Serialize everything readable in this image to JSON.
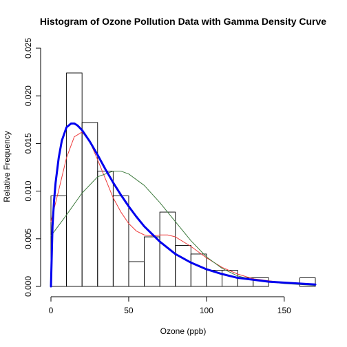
{
  "chart_data": {
    "type": "histogram",
    "title": "Histogram of Ozone Pollution Data with Gamma Density Curve",
    "xlabel": "Ozone (ppb)",
    "ylabel": "Relative Frequency",
    "xlim": [
      0,
      170
    ],
    "ylim": [
      0,
      0.025
    ],
    "x_ticks": [
      0,
      50,
      100,
      150
    ],
    "y_ticks": [
      0.0,
      0.005,
      0.01,
      0.015,
      0.02,
      0.025
    ],
    "y_tick_labels": [
      "0.000",
      "0.005",
      "0.010",
      "0.015",
      "0.020",
      "0.025"
    ],
    "grid": false,
    "legend": "none",
    "bin_width": 10,
    "bins": [
      {
        "start": 0,
        "end": 10,
        "density": 0.0095
      },
      {
        "start": 10,
        "end": 20,
        "density": 0.0224
      },
      {
        "start": 20,
        "end": 30,
        "density": 0.0172
      },
      {
        "start": 30,
        "end": 40,
        "density": 0.0121
      },
      {
        "start": 40,
        "end": 50,
        "density": 0.0095
      },
      {
        "start": 50,
        "end": 60,
        "density": 0.0026
      },
      {
        "start": 60,
        "end": 70,
        "density": 0.0052
      },
      {
        "start": 70,
        "end": 80,
        "density": 0.0078
      },
      {
        "start": 80,
        "end": 90,
        "density": 0.0043
      },
      {
        "start": 90,
        "end": 100,
        "density": 0.0034
      },
      {
        "start": 100,
        "end": 110,
        "density": 0.0017
      },
      {
        "start": 110,
        "end": 120,
        "density": 0.0017
      },
      {
        "start": 120,
        "end": 130,
        "density": 0.0009
      },
      {
        "start": 130,
        "end": 140,
        "density": 0.0009
      },
      {
        "start": 140,
        "end": 150,
        "density": 0.0
      },
      {
        "start": 150,
        "end": 160,
        "density": 0.0
      },
      {
        "start": 160,
        "end": 170,
        "density": 0.0009
      }
    ],
    "series": [
      {
        "color": "#0000ee",
        "width": 3,
        "x": [
          0,
          1,
          2,
          3,
          5,
          7,
          10,
          13,
          15,
          17,
          20,
          25,
          30,
          35,
          40,
          45,
          50,
          55,
          60,
          70,
          80,
          90,
          100,
          110,
          120,
          130,
          140,
          150,
          160,
          170
        ],
        "y": [
          0.0,
          0.0063,
          0.009,
          0.0109,
          0.0135,
          0.0153,
          0.0167,
          0.0171,
          0.0171,
          0.0169,
          0.0164,
          0.0152,
          0.0138,
          0.0123,
          0.0109,
          0.0096,
          0.0084,
          0.0073,
          0.0063,
          0.0047,
          0.0034,
          0.0025,
          0.0018,
          0.0013,
          0.0009,
          0.0007,
          0.0005,
          0.0004,
          0.0003,
          0.0002
        ]
      },
      {
        "color": "#ee3b3b",
        "width": 1,
        "x": [
          0,
          5,
          10,
          15,
          20,
          25,
          30,
          35,
          40,
          45,
          50,
          55,
          60,
          65,
          70,
          75,
          80,
          90,
          100,
          110,
          120,
          130,
          140,
          150,
          160,
          170
        ],
        "y": [
          0.0068,
          0.0101,
          0.0135,
          0.0157,
          0.0162,
          0.0152,
          0.0133,
          0.0113,
          0.0093,
          0.0078,
          0.0066,
          0.0058,
          0.0054,
          0.0053,
          0.0054,
          0.0054,
          0.0052,
          0.0042,
          0.003,
          0.002,
          0.0013,
          0.0008,
          0.0006,
          0.0004,
          0.0003,
          0.0002
        ]
      },
      {
        "color": "#3d7a3d",
        "width": 1,
        "x": [
          0,
          10,
          20,
          30,
          40,
          45,
          50,
          60,
          70,
          80,
          90,
          100,
          110,
          120,
          130,
          140,
          150,
          160,
          170
        ],
        "y": [
          0.0053,
          0.0075,
          0.0098,
          0.0115,
          0.0121,
          0.0121,
          0.0118,
          0.0106,
          0.0088,
          0.0068,
          0.0048,
          0.0031,
          0.0019,
          0.0011,
          0.0007,
          0.0005,
          0.0003,
          0.0002,
          0.0001
        ]
      }
    ]
  }
}
